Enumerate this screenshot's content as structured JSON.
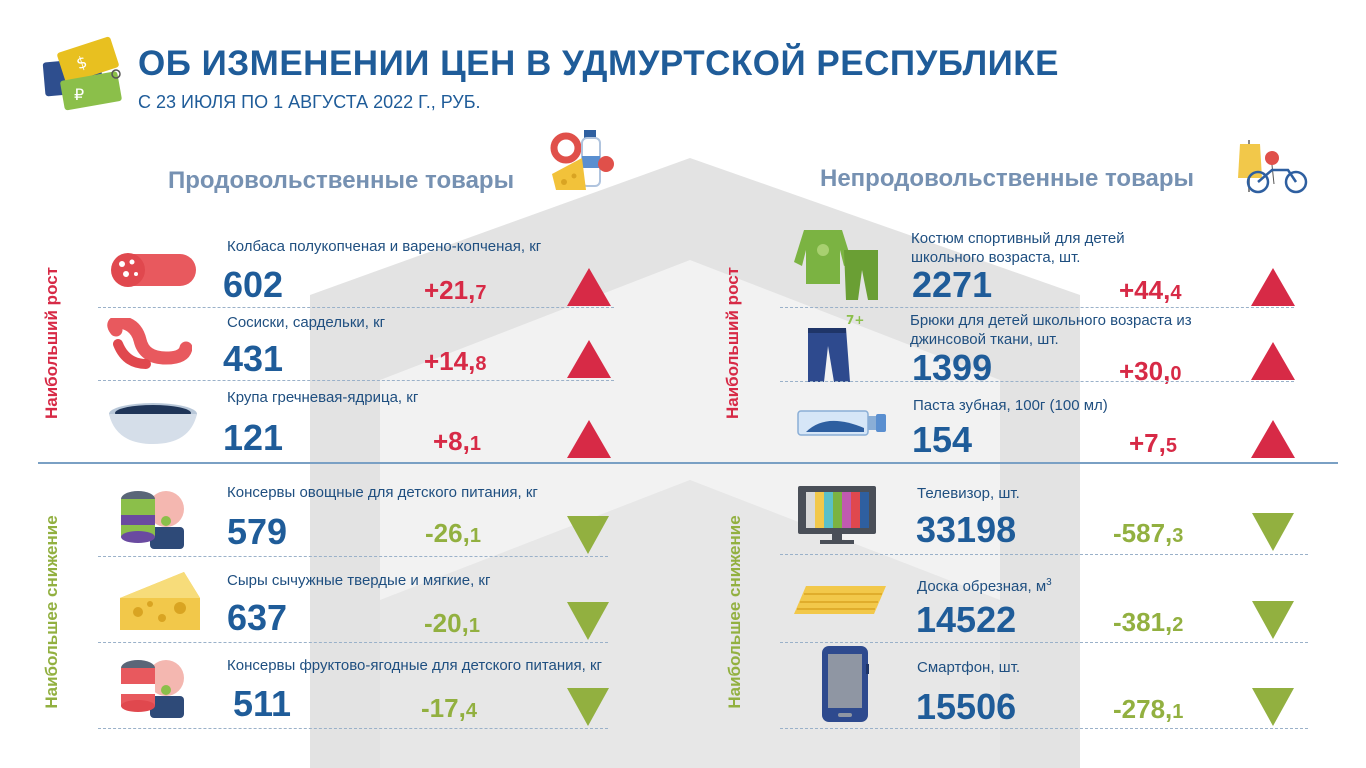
{
  "header": {
    "title": "ОБ ИЗМЕНЕНИИ ЦЕН В УДМУРТСКОЙ РЕСПУБЛИКЕ",
    "subtitle": "С 23 ИЮЛЯ ПО 1 АВГУСТА 2022 Г., РУБ."
  },
  "food": {
    "title": "Продовольственные товары",
    "growth_label": "Наибольший рост",
    "decline_label": "Наибольшее снижение",
    "growth": [
      {
        "label": "Колбаса полукопченая  и варено-копченая,  кг",
        "price": "602",
        "change_int": "+21,",
        "change_frac": "7"
      },
      {
        "label": "Сосиски, сардельки, кг",
        "price": "431",
        "change_int": "+14,",
        "change_frac": "8"
      },
      {
        "label": "Крупа гречневая-ядрица,  кг",
        "price": "121",
        "change_int": "+8,",
        "change_frac": "1"
      }
    ],
    "decline": [
      {
        "label": "Консервы овощные для детского питания, кг",
        "price": "579",
        "change_int": "-26,",
        "change_frac": "1"
      },
      {
        "label": "Сыры сычужные твердые и мягкие, кг",
        "price": "637",
        "change_int": "-20,",
        "change_frac": "1"
      },
      {
        "label": "Консервы фруктово-ягодные для детского питания, кг",
        "price": "511",
        "change_int": "-17,",
        "change_frac": "4"
      }
    ]
  },
  "nonfood": {
    "title": "Непродовольственные товары",
    "growth_label": "Наибольший рост",
    "decline_label": "Наибольшее снижение",
    "growth": [
      {
        "label_line1": "Костюм спортивный для детей",
        "label_line2": "школьного возраста, шт.",
        "price": "2271",
        "change_int": "+44,",
        "change_frac": "4"
      },
      {
        "label_line1": "Брюки для детей школьного возраста из",
        "label_line2": "джинсовой ткани, шт.",
        "price": "1399",
        "change_int": "+30,",
        "change_frac": "0"
      },
      {
        "label_line1": "Паста зубная, 100г  (100 мл)",
        "label_line2": "",
        "price": "154",
        "change_int": "+7,",
        "change_frac": "5"
      }
    ],
    "decline": [
      {
        "label": "Телевизор, шт.",
        "price": "33198",
        "change_int": "-587,",
        "change_frac": "3"
      },
      {
        "label": "Доска обрезная, м",
        "label_sup": "3",
        "price": "14522",
        "change_int": "-381,",
        "change_frac": "2"
      },
      {
        "label": "Смартфон, шт.",
        "price": "15506",
        "change_int": "-278,",
        "change_frac": "1"
      }
    ]
  },
  "icons": {
    "header": "price-tags-icon",
    "food_section": "groceries-icon",
    "nonfood_section": "clothes-bicycle-icon",
    "food_growth": [
      "sausage-icon",
      "sausages-icon",
      "buckwheat-bowl-icon"
    ],
    "food_decline": [
      "baby-vegetable-can-icon",
      "cheese-icon",
      "baby-fruit-can-icon"
    ],
    "nonfood_growth": [
      "tracksuit-icon",
      "jeans-icon",
      "toothpaste-icon"
    ],
    "nonfood_decline": [
      "tv-icon",
      "board-icon",
      "smartphone-icon"
    ]
  },
  "colors": {
    "title": "#1f5c99",
    "up": "#d72a46",
    "down": "#92b040",
    "section": "#7691b2"
  }
}
